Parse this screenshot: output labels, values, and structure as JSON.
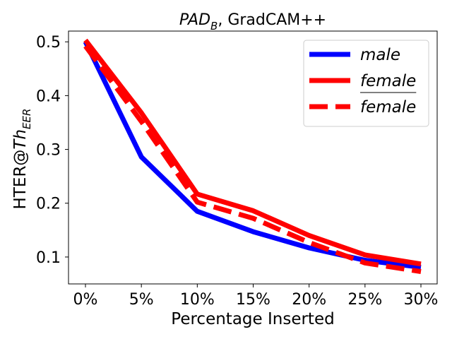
{
  "chart_data": {
    "type": "line",
    "title": {
      "italic_main": "PAD",
      "subscript": "B",
      "suffix": ", GradCAM++"
    },
    "xlabel": "Percentage Inserted",
    "ylabel": {
      "prefix": "HTER@",
      "italic_main": "Th",
      "subscript": "EER"
    },
    "categories": [
      "0%",
      "5%",
      "10%",
      "15%",
      "20%",
      "25%",
      "30%"
    ],
    "ylim": [
      0.05,
      0.52
    ],
    "yticks": [
      0.1,
      0.2,
      0.3,
      0.4,
      0.5
    ],
    "ytick_labels": [
      "0.1",
      "0.2",
      "0.3",
      "0.4",
      "0.5"
    ],
    "grid": false,
    "legend_position": "top-right",
    "series": [
      {
        "name": "male",
        "color": "#0000ff",
        "style": "solid",
        "overline": false,
        "values": [
          0.5,
          0.286,
          0.185,
          0.147,
          0.117,
          0.094,
          0.081
        ]
      },
      {
        "name": "female",
        "color": "#ff0000",
        "style": "solid",
        "overline": false,
        "values": [
          0.503,
          0.368,
          0.217,
          0.186,
          0.14,
          0.104,
          0.087
        ]
      },
      {
        "name": "female",
        "color": "#ff0000",
        "style": "dashed",
        "overline": true,
        "values": [
          0.492,
          0.352,
          0.202,
          0.172,
          0.127,
          0.089,
          0.073
        ]
      }
    ]
  }
}
